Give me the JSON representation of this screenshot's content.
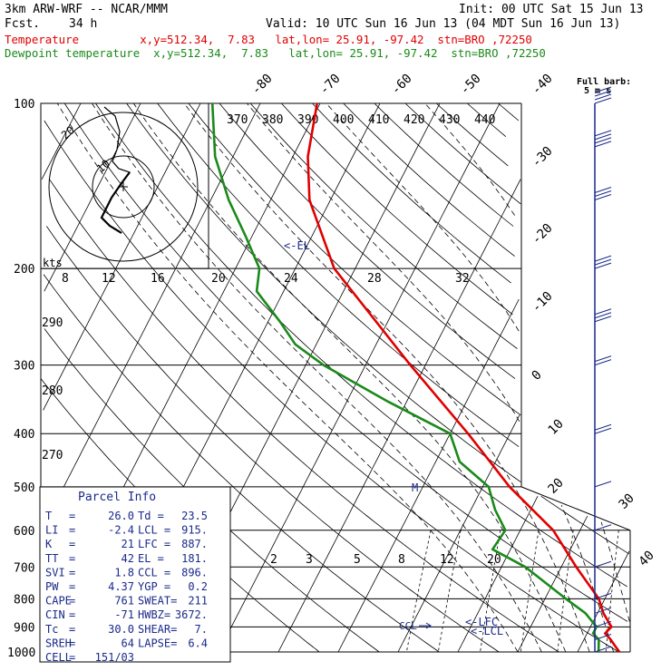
{
  "header": {
    "model": "3km ARW-WRF -- NCAR/MMM",
    "init": "Init: 00 UTC Sat 15 Jun 13",
    "fcst_label": "Fcst.",
    "fcst_value": "34 h",
    "valid": "Valid: 10 UTC Sun 16 Jun 13 (04 MDT Sun 16 Jun 13)",
    "temp_line": "Temperature         x,y=512.34,  7.83   lat,lon= 25.91, -97.42  stn=BRO ,72250",
    "dew_line": "Dewpoint temperature  x,y=512.34,  7.83   lat,lon= 25.91, -97.42  stn=BRO ,72250"
  },
  "colors": {
    "temperature": "#e00000",
    "dewpoint": "#1a8a1a",
    "wind": "#1a2a8a",
    "grid": "#000000"
  },
  "chart_data": {
    "type": "line",
    "title": "",
    "xlabel": "",
    "ylabel": "",
    "y_scale": "log-pressure",
    "ylim": [
      1000,
      100
    ],
    "pressure_ticks": [
      "100",
      "200",
      "300",
      "400",
      "500",
      "600",
      "700",
      "800",
      "900",
      "1000"
    ],
    "isotherm_labels": [
      "-80",
      "-70",
      "-60",
      "-50",
      "-40",
      "-30",
      "-20",
      "-10",
      "0",
      "10",
      "20",
      "30",
      "40"
    ],
    "theta_e_labels": [
      "370",
      "380",
      "390",
      "400",
      "410",
      "420",
      "430",
      "440"
    ],
    "theta_labels": [
      "290",
      "280",
      "270"
    ],
    "mixing_ratio_labels": [
      "2",
      "3",
      "5",
      "8",
      "12",
      "20"
    ],
    "hodograph_speed_labels": [
      "8",
      "12",
      "16",
      "20",
      "24",
      "28",
      "32"
    ],
    "hodograph_unit": "kts",
    "hodograph_ring_labels": [
      "20",
      "10"
    ],
    "wind_label": "Full barb:",
    "wind_label2": "5 m s",
    "level_markers": [
      "<-EL",
      "<-LFC",
      "<-LCL",
      "CCL",
      "M"
    ],
    "series": [
      {
        "name": "Temperature",
        "points": [
          [
            1000,
            27
          ],
          [
            980,
            26
          ],
          [
            950,
            24.5
          ],
          [
            925,
            23
          ],
          [
            900,
            23.5
          ],
          [
            850,
            21
          ],
          [
            800,
            19
          ],
          [
            700,
            12.5
          ],
          [
            600,
            5.5
          ],
          [
            500,
            -5.5
          ],
          [
            400,
            -17
          ],
          [
            300,
            -32.5
          ],
          [
            200,
            -53.5
          ],
          [
            150,
            -63.5
          ],
          [
            125,
            -67.5
          ],
          [
            100,
            -70.5
          ]
        ]
      },
      {
        "name": "Dewpoint temperature",
        "points": [
          [
            1000,
            23.5
          ],
          [
            950,
            22.5
          ],
          [
            925,
            21
          ],
          [
            900,
            21
          ],
          [
            850,
            18
          ],
          [
            800,
            13.5
          ],
          [
            700,
            4
          ],
          [
            650,
            -3
          ],
          [
            600,
            -2.5
          ],
          [
            550,
            -6
          ],
          [
            500,
            -9
          ],
          [
            450,
            -16
          ],
          [
            400,
            -20
          ],
          [
            350,
            -33
          ],
          [
            300,
            -47
          ],
          [
            275,
            -53.5
          ],
          [
            250,
            -58
          ],
          [
            220,
            -64.5
          ],
          [
            200,
            -66
          ],
          [
            175,
            -71
          ],
          [
            150,
            -77
          ],
          [
            125,
            -83
          ],
          [
            100,
            -88
          ]
        ]
      }
    ]
  },
  "parcel_info": {
    "title": "Parcel Info",
    "rows": [
      [
        "T",
        "=",
        "26.0",
        "Td =",
        "23.5"
      ],
      [
        "LI",
        "=",
        "-2.4",
        "LCL =",
        "915."
      ],
      [
        "K",
        "=",
        "21",
        "LFC =",
        "887."
      ],
      [
        "TT",
        "=",
        "42",
        "EL =",
        "181."
      ],
      [
        "SVI",
        "=",
        "1.8",
        "CCL =",
        "896."
      ],
      [
        "PW",
        "=",
        "4.37",
        "YGP =",
        "0.2"
      ],
      [
        "CAPE",
        "=",
        "761",
        "SWEAT=",
        "211"
      ],
      [
        "CIN",
        "=",
        "-71",
        "HWBZ=",
        "3672."
      ],
      [
        "Tc",
        "=",
        "30.0",
        "SHEAR=",
        "7."
      ],
      [
        "SREH",
        "=",
        "64",
        "LAPSE=",
        "6.4"
      ],
      [
        "CELL",
        "=",
        "151/03",
        "",
        ""
      ]
    ]
  },
  "wind_profile": {
    "barbs_kt": [
      [
        1000,
        5
      ],
      [
        950,
        5
      ],
      [
        900,
        5
      ],
      [
        850,
        5
      ],
      [
        800,
        5
      ],
      [
        700,
        5
      ],
      [
        600,
        5
      ],
      [
        500,
        5
      ],
      [
        400,
        10
      ],
      [
        300,
        10
      ],
      [
        250,
        15
      ],
      [
        200,
        15
      ],
      [
        150,
        15
      ],
      [
        120,
        20
      ],
      [
        100,
        20
      ]
    ]
  }
}
